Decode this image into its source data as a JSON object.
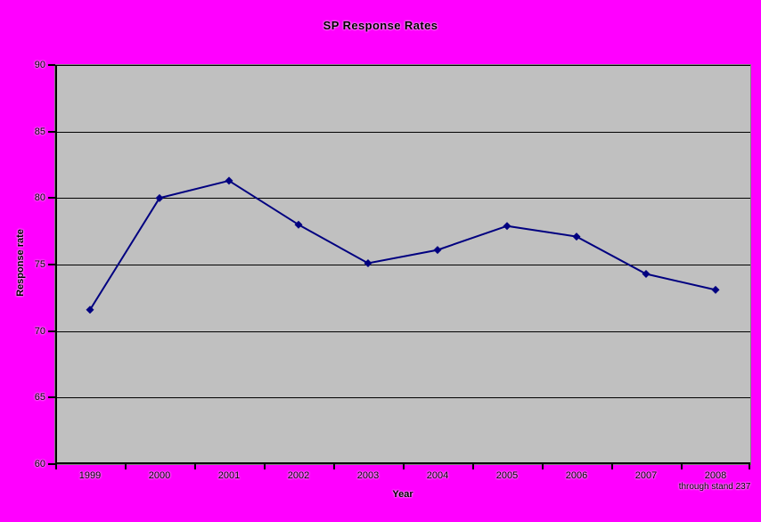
{
  "chart_data": {
    "type": "line",
    "title": "SP Response Rates",
    "xlabel": "Year",
    "ylabel": "Response rate",
    "categories": [
      "1999",
      "2000",
      "2001",
      "2002",
      "2003",
      "2004",
      "2005",
      "2006",
      "2007",
      "2008"
    ],
    "values": [
      71.6,
      80,
      81.3,
      78,
      75.1,
      76.1,
      77.9,
      77.1,
      74.3,
      73.1
    ],
    "ylim": [
      60,
      90
    ],
    "yticks": [
      90,
      85,
      80,
      75,
      70,
      65,
      60
    ],
    "note": "through stand 237",
    "grid": true,
    "legend_position": "none",
    "marker": "diamond",
    "colors": {
      "background": "#ff00ff",
      "plot_background": "#c0c0c0",
      "plot_border": "#808080",
      "series_line": "#000080",
      "grid_line": "#000000",
      "axis_line": "#000000",
      "text": "#000000"
    }
  }
}
